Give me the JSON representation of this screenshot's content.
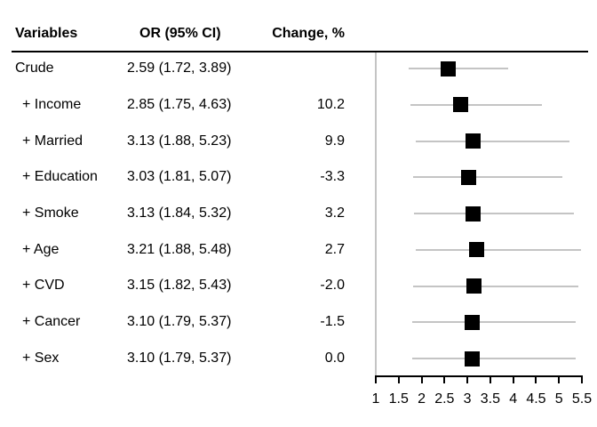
{
  "table": {
    "headers": {
      "variables": "Variables",
      "or_ci": "OR (95% CI)",
      "change": "Change, %"
    },
    "rows": [
      {
        "variable": "Crude",
        "or_ci": "2.59 (1.72, 3.89)",
        "change": ""
      },
      {
        "variable": "+ Income",
        "or_ci": "2.85 (1.75, 4.63)",
        "change": "10.2"
      },
      {
        "variable": "+ Married",
        "or_ci": "3.13 (1.88, 5.23)",
        "change": "9.9"
      },
      {
        "variable": "+ Education",
        "or_ci": "3.03 (1.81, 5.07)",
        "change": "-3.3"
      },
      {
        "variable": "+ Smoke",
        "or_ci": "3.13 (1.84, 5.32)",
        "change": "3.2"
      },
      {
        "variable": "+ Age",
        "or_ci": "3.21 (1.88, 5.48)",
        "change": "2.7"
      },
      {
        "variable": "+ CVD",
        "or_ci": "3.15 (1.82, 5.43)",
        "change": "-2.0"
      },
      {
        "variable": "+ Cancer",
        "or_ci": "3.10 (1.79, 5.37)",
        "change": "-1.5"
      },
      {
        "variable": "+ Sex",
        "or_ci": "3.10 (1.79, 5.37)",
        "change": "0.0"
      }
    ]
  },
  "chart_data": {
    "type": "scatter",
    "subtype": "forest-plot",
    "title": "",
    "xlabel": "",
    "ylabel": "",
    "marker": "square",
    "xlim": [
      1,
      5.5
    ],
    "xticks": [
      1,
      1.5,
      2,
      2.5,
      3,
      3.5,
      4,
      4.5,
      5,
      5.5
    ],
    "grid": false,
    "rows": [
      {
        "label": "Crude",
        "or": 2.59,
        "ci_low": 1.72,
        "ci_high": 3.89,
        "change_pct": null
      },
      {
        "label": "+ Income",
        "or": 2.85,
        "ci_low": 1.75,
        "ci_high": 4.63,
        "change_pct": 10.2
      },
      {
        "label": "+ Married",
        "or": 3.13,
        "ci_low": 1.88,
        "ci_high": 5.23,
        "change_pct": 9.9
      },
      {
        "label": "+ Education",
        "or": 3.03,
        "ci_low": 1.81,
        "ci_high": 5.07,
        "change_pct": -3.3
      },
      {
        "label": "+ Smoke",
        "or": 3.13,
        "ci_low": 1.84,
        "ci_high": 5.32,
        "change_pct": 3.2
      },
      {
        "label": "+ Age",
        "or": 3.21,
        "ci_low": 1.88,
        "ci_high": 5.48,
        "change_pct": 2.7
      },
      {
        "label": "+ CVD",
        "or": 3.15,
        "ci_low": 1.82,
        "ci_high": 5.43,
        "change_pct": -2.0
      },
      {
        "label": "+ Cancer",
        "or": 3.1,
        "ci_low": 1.79,
        "ci_high": 5.37,
        "change_pct": -1.5
      },
      {
        "label": "+ Sex",
        "or": 3.1,
        "ci_low": 1.79,
        "ci_high": 5.37,
        "change_pct": 0.0
      }
    ]
  },
  "colors": {
    "marker": "#000000",
    "ci_line": "#c4c4c4",
    "axis": "#000000",
    "boundary_line": "#c4c4c4",
    "text": "#000000",
    "background": "#ffffff"
  }
}
